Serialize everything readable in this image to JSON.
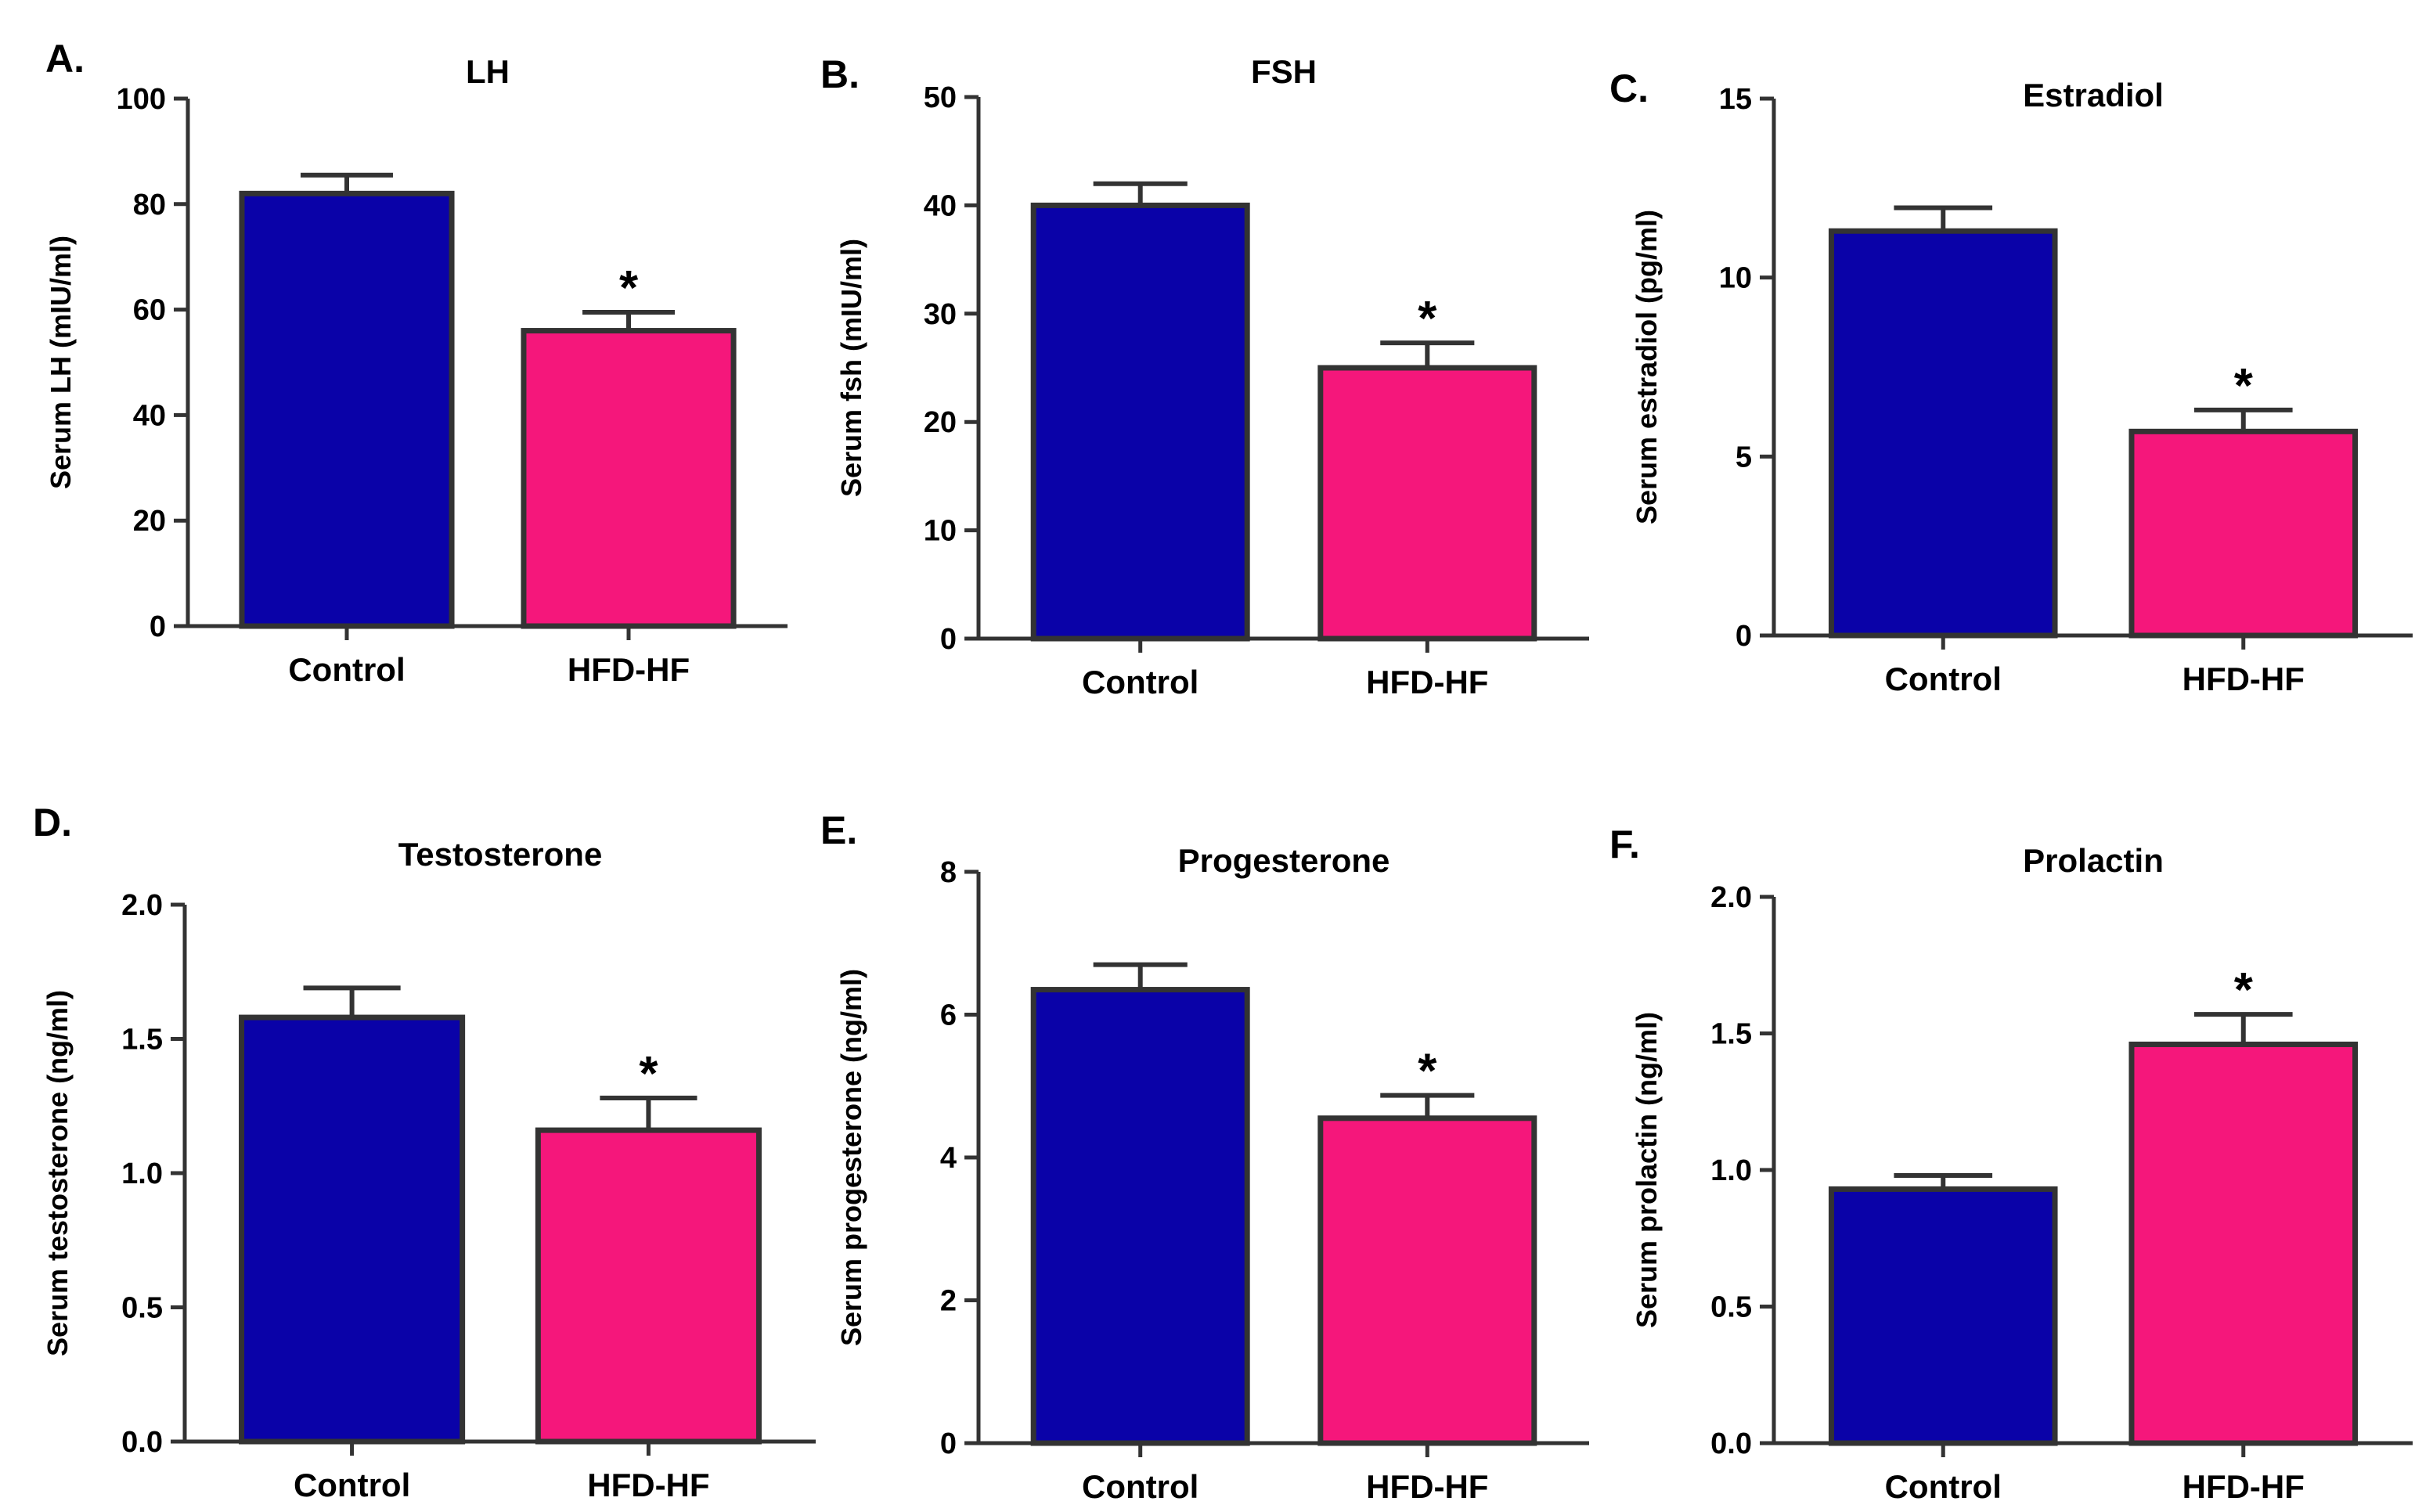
{
  "colors": {
    "control": "#0a02a8",
    "hfd_hf": "#f5177b",
    "outline": "#333333"
  },
  "chart_data": [
    {
      "panel": "A.",
      "type": "bar",
      "title": "LH",
      "ylabel": "Serum LH (mIU/ml)",
      "categories": [
        "Control",
        "HFD-HF"
      ],
      "values": [
        82,
        56
      ],
      "errors": [
        3.5,
        3.5
      ],
      "significance": [
        "",
        "*"
      ],
      "ylim": [
        0,
        100
      ],
      "yticks": [
        "0",
        "20",
        "40",
        "60",
        "80",
        "100"
      ]
    },
    {
      "panel": "B.",
      "type": "bar",
      "title": "FSH",
      "ylabel": "Serum fsh (mIU/ml)",
      "categories": [
        "Control",
        "HFD-HF"
      ],
      "values": [
        40,
        25
      ],
      "errors": [
        2,
        2.3
      ],
      "significance": [
        "",
        "*"
      ],
      "ylim": [
        0,
        50
      ],
      "yticks": [
        "0",
        "10",
        "20",
        "30",
        "40",
        "50"
      ]
    },
    {
      "panel": "C.",
      "type": "bar",
      "title": "Estradiol",
      "ylabel": "Serum estradiol (pg/ml)",
      "categories": [
        "Control",
        "HFD-HF"
      ],
      "values": [
        11.3,
        5.7
      ],
      "errors": [
        0.65,
        0.6
      ],
      "significance": [
        "",
        "*"
      ],
      "ylim": [
        0,
        15
      ],
      "yticks": [
        "0",
        "5",
        "10",
        "15"
      ]
    },
    {
      "panel": "D.",
      "type": "bar",
      "title": "Testosterone",
      "ylabel": "Serum testosterone (ng/ml)",
      "categories": [
        "Control",
        "HFD-HF"
      ],
      "values": [
        1.58,
        1.16
      ],
      "errors": [
        0.11,
        0.12
      ],
      "significance": [
        "",
        "*"
      ],
      "ylim": [
        0,
        2.0
      ],
      "yticks": [
        "0.0",
        "0.5",
        "1.0",
        "1.5",
        "2.0"
      ]
    },
    {
      "panel": "E.",
      "type": "bar",
      "title": "Progesterone",
      "ylabel": "Serum progesterone (ng/ml)",
      "categories": [
        "Control",
        "HFD-HF"
      ],
      "values": [
        6.35,
        4.55
      ],
      "errors": [
        0.35,
        0.32
      ],
      "significance": [
        "",
        "*"
      ],
      "ylim": [
        0,
        8
      ],
      "yticks": [
        "0",
        "2",
        "4",
        "6",
        "8"
      ]
    },
    {
      "panel": "F.",
      "type": "bar",
      "title": "Prolactin",
      "ylabel": "Serum prolactin (ng/ml)",
      "categories": [
        "Control",
        "HFD-HF"
      ],
      "values": [
        0.93,
        1.46
      ],
      "errors": [
        0.05,
        0.11
      ],
      "significance": [
        "",
        "*"
      ],
      "ylim": [
        0,
        2.0
      ],
      "yticks": [
        "0.0",
        "0.5",
        "1.0",
        "1.5",
        "2.0"
      ]
    }
  ]
}
